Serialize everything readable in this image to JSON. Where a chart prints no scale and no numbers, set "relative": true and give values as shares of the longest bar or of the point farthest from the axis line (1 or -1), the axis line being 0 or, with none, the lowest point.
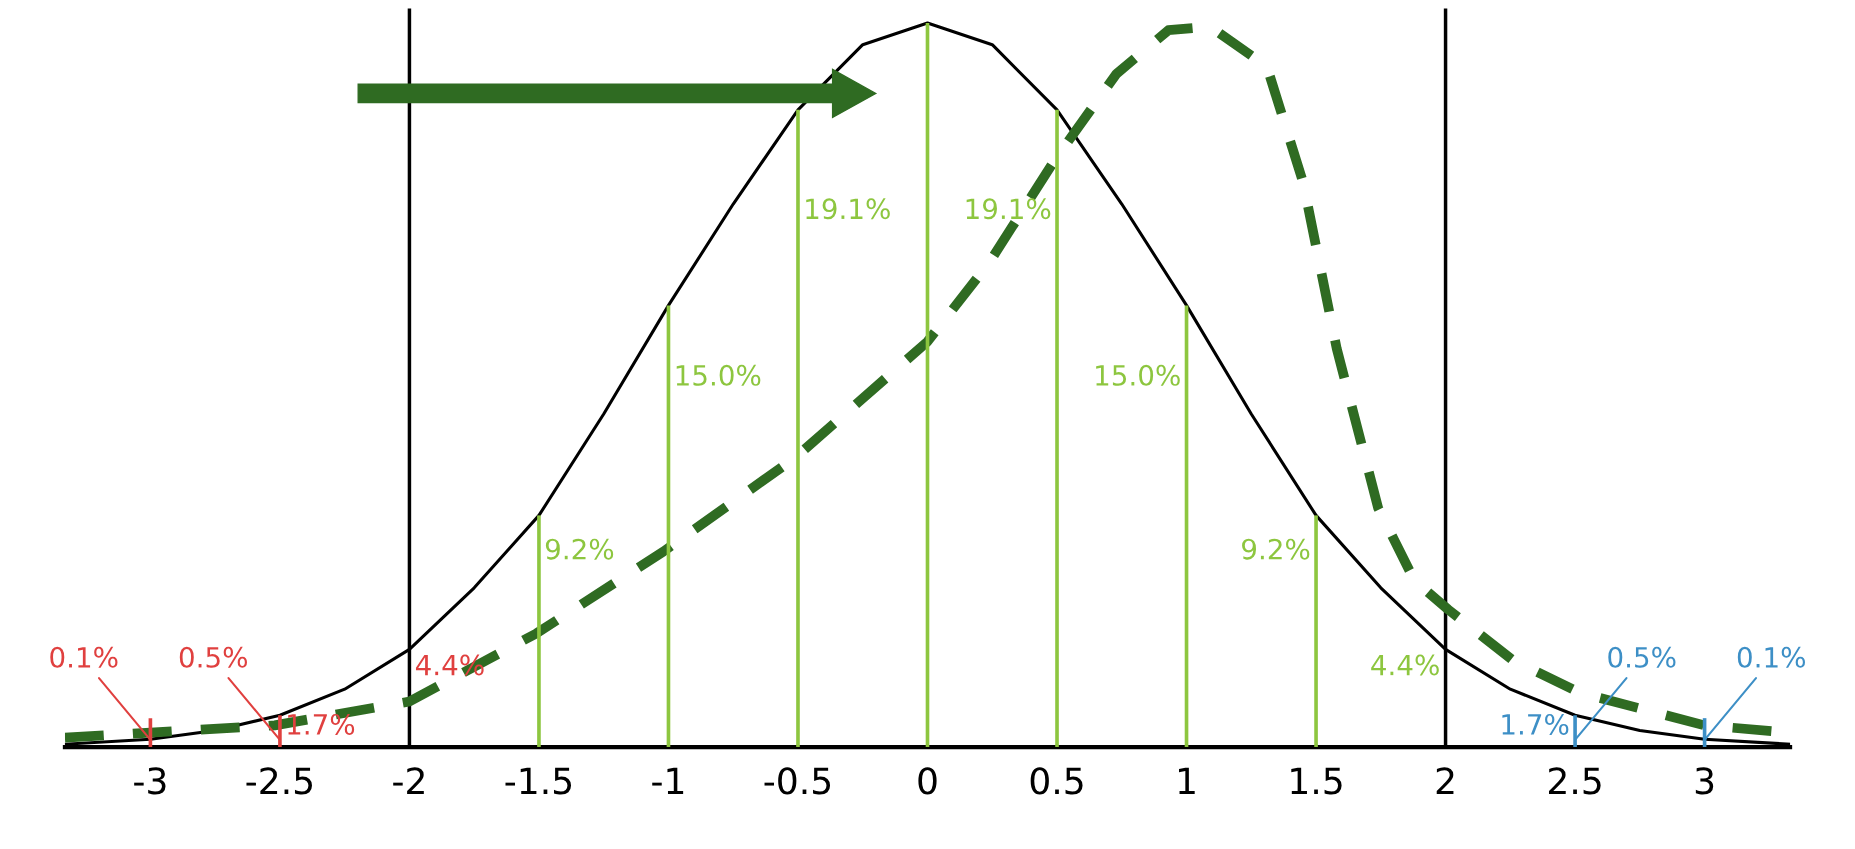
{
  "chart_data": {
    "type": "line",
    "relative": true,
    "xlim": [
      -3.33,
      3.33
    ],
    "xticks": [
      -3,
      -2.5,
      -2,
      -1.5,
      -1,
      -0.5,
      0,
      0.5,
      1,
      1.5,
      2,
      2.5,
      3
    ],
    "grid": false,
    "legend": false,
    "marker": "none",
    "series": [
      {
        "color": "#000000",
        "line_style": "solid",
        "x": [
          -3.33,
          -3,
          -2.75,
          -2.5,
          -2.25,
          -2,
          -1.75,
          -1.5,
          -1.25,
          -1,
          -0.75,
          -0.5,
          -0.25,
          0,
          0.25,
          0.5,
          0.75,
          1,
          1.25,
          1.5,
          1.75,
          2,
          2.25,
          2.5,
          2.75,
          3,
          3.33
        ],
        "values": [
          0.004,
          0.011,
          0.023,
          0.044,
          0.08,
          0.135,
          0.22,
          0.32,
          0.46,
          0.61,
          0.75,
          0.88,
          0.97,
          1,
          0.97,
          0.88,
          0.75,
          0.61,
          0.46,
          0.32,
          0.22,
          0.135,
          0.08,
          0.044,
          0.023,
          0.011,
          0.004
        ]
      },
      {
        "color": "#2f6b22",
        "line_style": "dashed",
        "x": [
          -3.33,
          -3,
          -2.52,
          -2,
          -1.51,
          -1.02,
          -0.51,
          0,
          0.24,
          0.49,
          0.73,
          0.93,
          1.09,
          1.31,
          1.45,
          1.58,
          1.74,
          1.88,
          2.01,
          2.26,
          2.52,
          3,
          3.33
        ],
        "values": [
          0.013,
          0.02,
          0.03,
          0.063,
          0.157,
          0.27,
          0.4,
          0.56,
          0.67,
          0.81,
          0.93,
          0.99,
          0.995,
          0.94,
          0.78,
          0.55,
          0.33,
          0.23,
          0.19,
          0.12,
          0.075,
          0.03,
          0.02
        ]
      },
      {
        "type": "bar",
        "x": [
          -3,
          -2.5,
          -1.5,
          -1,
          -0.5,
          0,
          0.5,
          1,
          1.5,
          2.5,
          3
        ],
        "values": [
          0.04,
          0.044,
          0.32,
          0.61,
          0.88,
          1,
          0.88,
          0.61,
          0.32,
          0.044,
          0.04
        ],
        "colors": [
          "#e0403f",
          "#e0403f",
          "#8dc63f",
          "#8dc63f",
          "#8dc63f",
          "#8dc63f",
          "#8dc63f",
          "#8dc63f",
          "#8dc63f",
          "#3d8fc6",
          "#3d8fc6"
        ]
      }
    ],
    "ref_lines": [
      {
        "axis": "x",
        "value": -2,
        "color": "#000000"
      },
      {
        "axis": "x",
        "value": 2,
        "color": "#000000"
      }
    ],
    "annotations": [
      {
        "text": "19.1%",
        "x": -0.5,
        "y": 0.74
      },
      {
        "text": "19.1%",
        "x": 0.5,
        "y": 0.74
      },
      {
        "text": "15.0%",
        "x": -1,
        "y": 0.51
      },
      {
        "text": "15.0%",
        "x": 1,
        "y": 0.51
      },
      {
        "text": "9.2%",
        "x": -1.5,
        "y": 0.27
      },
      {
        "text": "9.2%",
        "x": 1.5,
        "y": 0.27
      },
      {
        "text": "4.4%",
        "x": -2,
        "y": 0.11
      },
      {
        "text": "4.4%",
        "x": 2,
        "y": 0.11
      },
      {
        "text": "1.7%",
        "x": -2.5,
        "y": 0.028
      },
      {
        "text": "1.7%",
        "x": 2.5,
        "y": 0.028
      },
      {
        "text": "0.1%",
        "x": -3,
        "y": 0.01
      },
      {
        "text": "0.5%",
        "x": -2.5,
        "y": 0.01
      },
      {
        "text": "0.5%",
        "x": 2.5,
        "y": 0.01
      },
      {
        "text": "0.1%",
        "x": 3,
        "y": 0.01
      }
    ]
  }
}
